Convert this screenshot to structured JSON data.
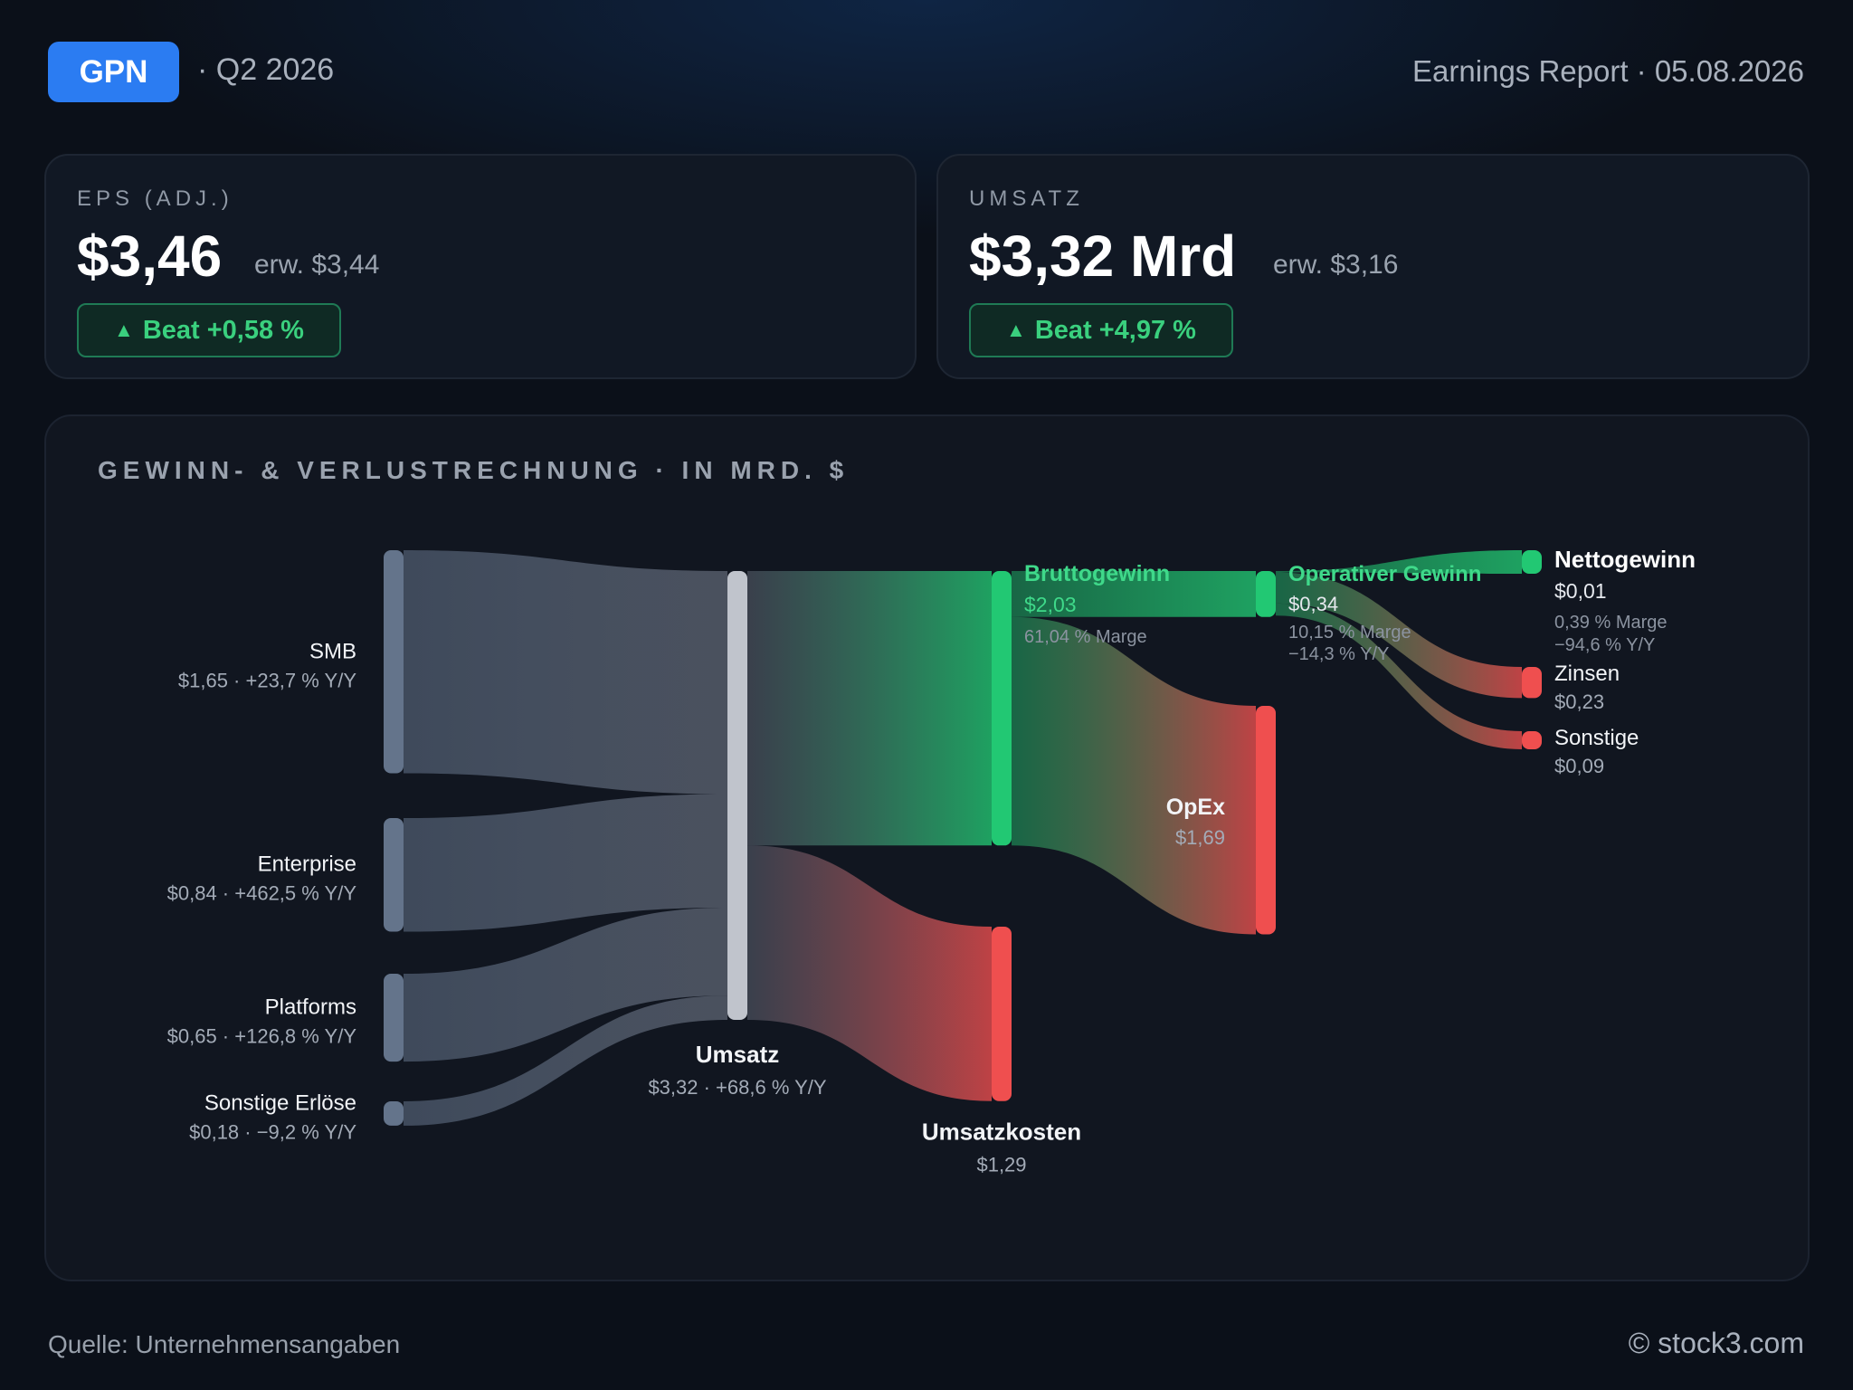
{
  "header": {
    "ticker": "GPN",
    "period": "· Q2 2026",
    "report": "Earnings Report · 05.08.2026"
  },
  "kpis": {
    "eps": {
      "label": "EPS (ADJ.)",
      "value": "$3,46",
      "estimate": "erw. $3,44",
      "beat": "Beat +0,58 %",
      "beat_icon": "up-triangle-icon"
    },
    "revenue": {
      "label": "UMSATZ",
      "value": "$3,32 Mrd",
      "estimate": "erw. $3,16",
      "beat": "Beat +4,97 %",
      "beat_icon": "up-triangle-icon"
    }
  },
  "panel": {
    "title": "GEWINN- & VERLUSTRECHNUNG · IN MRD. $"
  },
  "chart_data": {
    "type": "sankey",
    "unit": "Mrd. $",
    "colors": {
      "neutral": "#64748b",
      "revenue": "#c0c4cc",
      "profit": "#22c873",
      "cost": "#ef4f4f"
    },
    "nodes": [
      {
        "id": "smb",
        "name": "SMB",
        "value": 1.65,
        "line2": "$1,65 · +23,7 % Y/Y",
        "kind": "neutral"
      },
      {
        "id": "enterprise",
        "name": "Enterprise",
        "value": 0.84,
        "line2": "$0,84 · +462,5 % Y/Y",
        "kind": "neutral"
      },
      {
        "id": "platforms",
        "name": "Platforms",
        "value": 0.65,
        "line2": "$0,65 · +126,8 % Y/Y",
        "kind": "neutral"
      },
      {
        "id": "other_rev",
        "name": "Sonstige Erlöse",
        "value": 0.18,
        "line2": "$0,18 · −9,2 % Y/Y",
        "kind": "neutral"
      },
      {
        "id": "revenue",
        "name": "Umsatz",
        "value": 3.32,
        "line2": "$3,32 · +68,6 % Y/Y",
        "kind": "revenue"
      },
      {
        "id": "gross",
        "name": "Bruttogewinn",
        "value": 2.03,
        "line2": "$2,03",
        "line3": "61,04 % Marge",
        "kind": "profit"
      },
      {
        "id": "cogs",
        "name": "Umsatzkosten",
        "value": 1.29,
        "line2": "$1,29",
        "kind": "cost"
      },
      {
        "id": "opinc",
        "name": "Operativer Gewinn",
        "value": 0.34,
        "line2": "$0,34",
        "line3": "10,15 % Marge",
        "line4": "−14,3 % Y/Y",
        "kind": "profit"
      },
      {
        "id": "opex",
        "name": "OpEx",
        "value": 1.69,
        "line2": "$1,69",
        "kind": "cost"
      },
      {
        "id": "net",
        "name": "Nettogewinn",
        "value": 0.01,
        "line2": "$0,01",
        "line3": "0,39 % Marge",
        "line4": "−94,6 % Y/Y",
        "kind": "profit"
      },
      {
        "id": "interest",
        "name": "Zinsen",
        "value": 0.23,
        "line2": "$0,23",
        "kind": "cost"
      },
      {
        "id": "other_exp",
        "name": "Sonstige",
        "value": 0.09,
        "line2": "$0,09",
        "kind": "cost"
      }
    ],
    "links": [
      {
        "source": "smb",
        "target": "revenue",
        "value": 1.65
      },
      {
        "source": "enterprise",
        "target": "revenue",
        "value": 0.84
      },
      {
        "source": "platforms",
        "target": "revenue",
        "value": 0.65
      },
      {
        "source": "other_rev",
        "target": "revenue",
        "value": 0.18
      },
      {
        "source": "revenue",
        "target": "gross",
        "value": 2.03
      },
      {
        "source": "revenue",
        "target": "cogs",
        "value": 1.29
      },
      {
        "source": "gross",
        "target": "opinc",
        "value": 0.34
      },
      {
        "source": "gross",
        "target": "opex",
        "value": 1.69
      },
      {
        "source": "opinc",
        "target": "net",
        "value": 0.01
      },
      {
        "source": "opinc",
        "target": "interest",
        "value": 0.23
      },
      {
        "source": "opinc",
        "target": "other_exp",
        "value": 0.09
      }
    ]
  },
  "footer": {
    "source": "Quelle: Unternehmensangaben",
    "copyright": "© stock3.com"
  }
}
